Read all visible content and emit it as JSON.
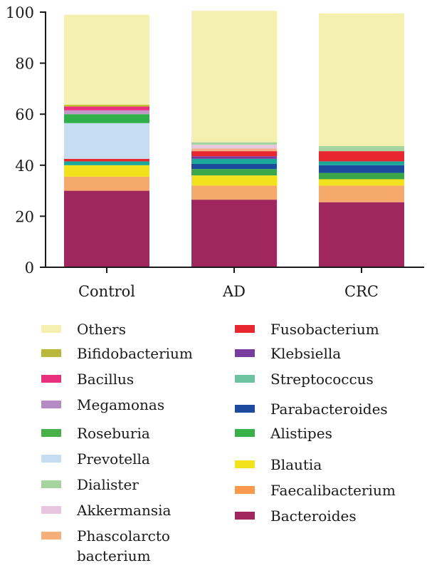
{
  "chart_data": {
    "type": "stacked-bar",
    "categories": [
      "Control",
      "AD",
      "CRC"
    ],
    "ylim": [
      0,
      100
    ],
    "yticks": [
      0,
      20,
      40,
      60,
      80,
      100
    ],
    "series": [
      {
        "name": "Bacteroides",
        "color": "#a0275e",
        "values": [
          30,
          26.5,
          25.5
        ]
      },
      {
        "name": "Faecalibacterium",
        "color": "#f5a96a",
        "values": [
          5.5,
          5.5,
          6.5
        ]
      },
      {
        "name": "Blautia",
        "color": "#f2e11d",
        "values": [
          4.5,
          4,
          2.5
        ]
      },
      {
        "name": "Alistipes",
        "color": "#3aa84a",
        "values": [
          0,
          2.5,
          2.5
        ]
      },
      {
        "name": "Parabacteroides",
        "color": "#1d4a9e",
        "values": [
          0,
          2,
          3
        ]
      },
      {
        "name": "Streptococcus",
        "color": "#1aa89a",
        "values": [
          1.5,
          2,
          1.5
        ]
      },
      {
        "name": "Klebsiella",
        "color": "#7a3b9e",
        "values": [
          0,
          1,
          0
        ]
      },
      {
        "name": "Fusobacterium",
        "color": "#e8262f",
        "values": [
          1,
          2,
          4
        ]
      },
      {
        "name": "Phascolarctobacterium",
        "color": "#f5b183",
        "values": [
          0,
          1,
          0
        ]
      },
      {
        "name": "Akkermansia",
        "color": "#e8c6e0",
        "values": [
          0,
          1.5,
          0
        ]
      },
      {
        "name": "Dialister",
        "color": "#a6d4a0",
        "values": [
          0,
          1,
          2
        ]
      },
      {
        "name": "Prevotella",
        "color": "#c6dcf0",
        "values": [
          14,
          0,
          0
        ]
      },
      {
        "name": "Roseburia",
        "color": "#2fb04a",
        "values": [
          3.5,
          0,
          0
        ]
      },
      {
        "name": "Megamonas",
        "color": "#c597c8",
        "values": [
          1.5,
          0,
          0
        ]
      },
      {
        "name": "Bacillus",
        "color": "#e8307f",
        "values": [
          1.5,
          0,
          0
        ]
      },
      {
        "name": "Bifidobacterium",
        "color": "#c4c42f",
        "values": [
          0.7,
          0,
          0
        ]
      },
      {
        "name": "Others",
        "color": "#f4f0b0",
        "values": [
          35.3,
          51.5,
          52
        ]
      }
    ]
  },
  "legend": {
    "left": [
      {
        "label": "Others",
        "color": "#f4f0b0"
      },
      {
        "label": "Bifidobacterium",
        "color": "#b8b83a"
      },
      {
        "label": "Bacillus",
        "color": "#e8307f"
      },
      {
        "label": "Megamonas",
        "color": "#b58ac6"
      },
      {
        "label": "Roseburia",
        "color": "#47b048"
      },
      {
        "label": "Prevotella",
        "color": "#c6dcf0"
      },
      {
        "label": "Dialister",
        "color": "#a6d4a0"
      },
      {
        "label": "Akkermansia",
        "color": "#e8c6e0"
      },
      {
        "label_line1": "Phascolarcto",
        "label_line2": "bacterium",
        "color": "#f7b07a"
      }
    ],
    "right": [
      {
        "label": "Fusobacterium",
        "color": "#e8262f"
      },
      {
        "label": "Klebsiella",
        "color": "#7a3b9e"
      },
      {
        "label": "Streptococcus",
        "color": "#6cc4a0"
      },
      {
        "label": "Parabacteroides",
        "color": "#1d4a9e"
      },
      {
        "label": "Alistipes",
        "color": "#3ab048"
      },
      {
        "label": "Blautia",
        "color": "#f2e11d"
      },
      {
        "label": "Faecalibacterium",
        "color": "#f89a4e"
      },
      {
        "label": "Bacteroides",
        "color": "#a0275e"
      }
    ]
  }
}
